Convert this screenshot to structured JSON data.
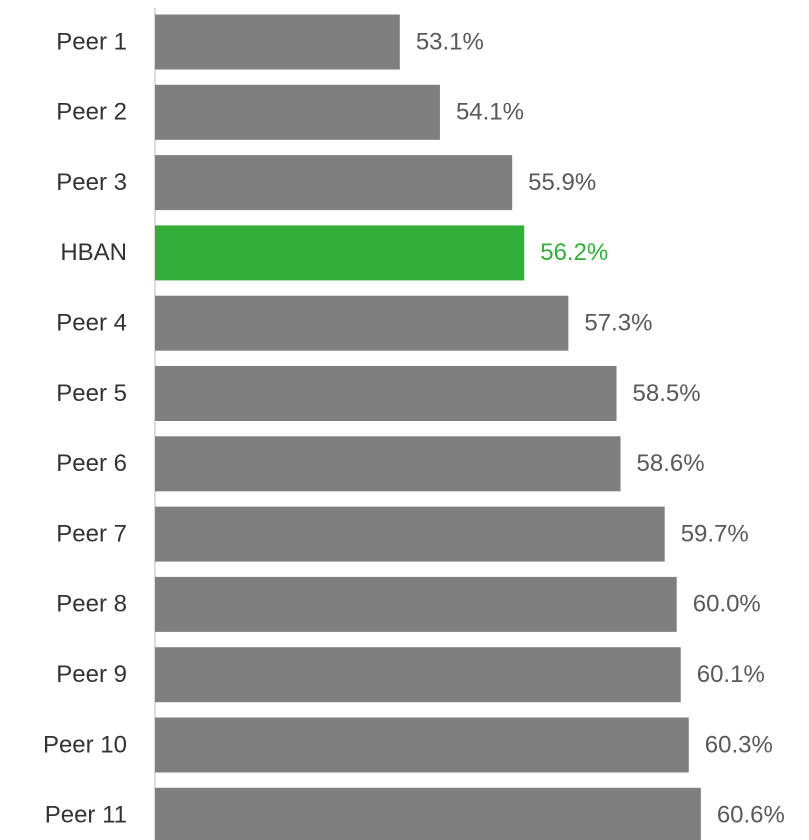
{
  "chart_data": {
    "type": "barh",
    "categories": [
      "Peer 1",
      "Peer 2",
      "Peer 3",
      "HBAN",
      "Peer 4",
      "Peer 5",
      "Peer 6",
      "Peer 7",
      "Peer 8",
      "Peer 9",
      "Peer 10",
      "Peer 11"
    ],
    "values": [
      53.1,
      54.1,
      55.9,
      56.2,
      57.3,
      58.5,
      58.6,
      59.7,
      60.0,
      60.1,
      60.3,
      60.6
    ],
    "value_labels": [
      "53.1%",
      "54.1%",
      "55.9%",
      "56.2%",
      "57.3%",
      "58.5%",
      "58.6%",
      "59.7%",
      "60.0%",
      "60.1%",
      "60.3%",
      "60.6%"
    ],
    "colors": [
      "#7f7f7f",
      "#7f7f7f",
      "#7f7f7f",
      "#33ae3a",
      "#7f7f7f",
      "#7f7f7f",
      "#7f7f7f",
      "#7f7f7f",
      "#7f7f7f",
      "#7f7f7f",
      "#7f7f7f",
      "#7f7f7f"
    ],
    "label_colors": [
      "#595959",
      "#595959",
      "#595959",
      "#33ae3a",
      "#595959",
      "#595959",
      "#595959",
      "#595959",
      "#595959",
      "#595959",
      "#595959",
      "#595959"
    ],
    "xlim": [
      47,
      62
    ]
  }
}
